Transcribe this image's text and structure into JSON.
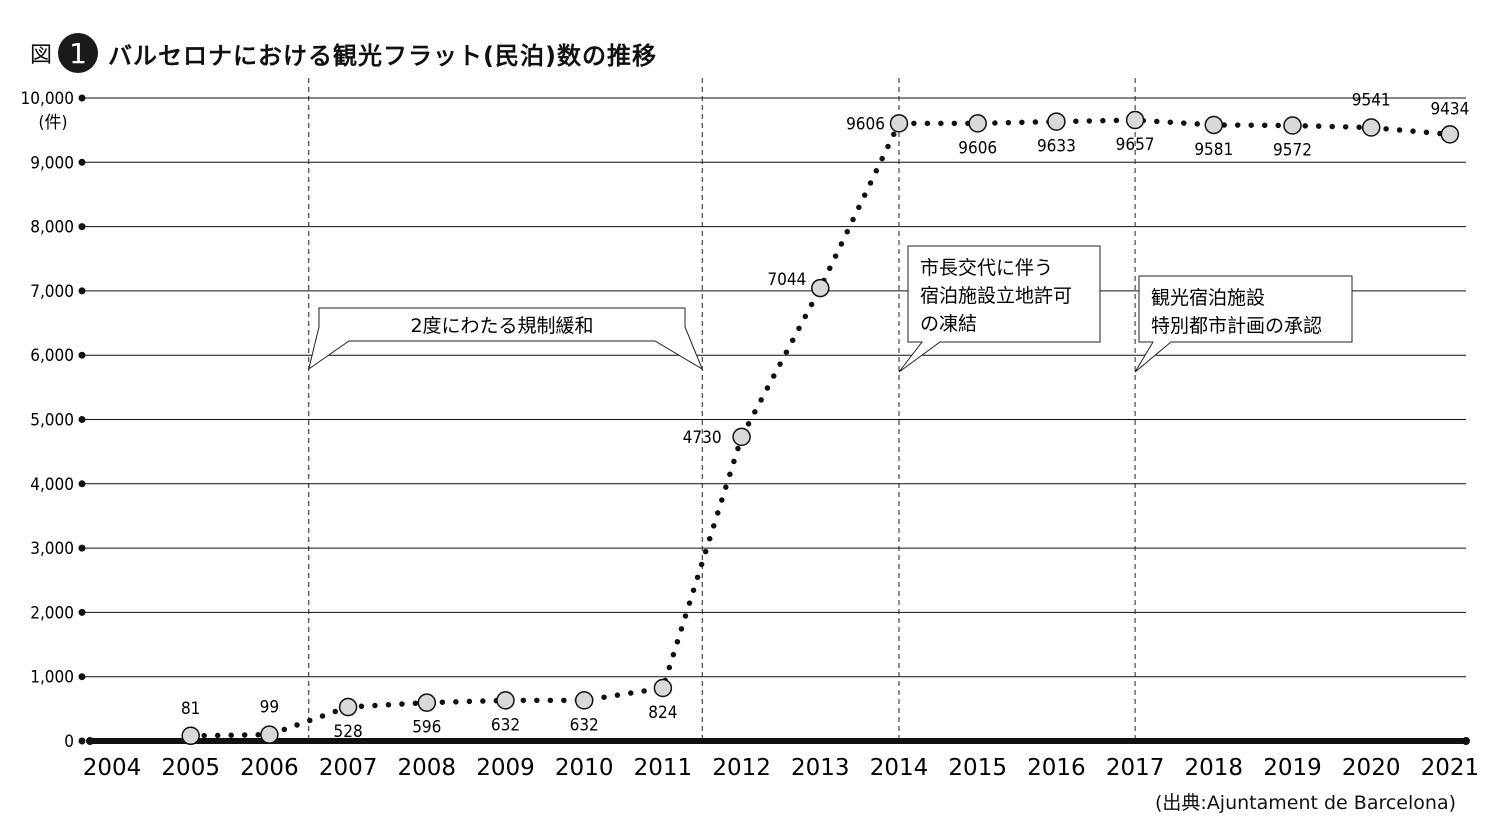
{
  "header": {
    "figure_label": "図",
    "figure_number": "1",
    "title": "バルセロナにおける観光フラット(民泊)数の推移"
  },
  "chart_data": {
    "type": "line",
    "x": [
      2005,
      2006,
      2007,
      2008,
      2009,
      2010,
      2011,
      2012,
      2013,
      2014,
      2015,
      2016,
      2017,
      2018,
      2019,
      2020,
      2021
    ],
    "values": [
      81,
      99,
      528,
      596,
      632,
      632,
      824,
      4730,
      7044,
      9606,
      9606,
      9633,
      9657,
      9581,
      9572,
      9541,
      9434
    ],
    "data_labels": [
      "81",
      "99",
      "528",
      "596",
      "632",
      "632",
      "824",
      "4730",
      "7044",
      "9606",
      "9606",
      "9633",
      "9657",
      "9581",
      "9572",
      "9541",
      "9434"
    ],
    "x_ticks": [
      "2004",
      "2005",
      "2006",
      "2007",
      "2008",
      "2009",
      "2010",
      "2011",
      "2012",
      "2013",
      "2014",
      "2015",
      "2016",
      "2017",
      "2018",
      "2019",
      "2020",
      "2021"
    ],
    "y_ticks": [
      "0",
      "1,000",
      "2,000",
      "3,000",
      "4,000",
      "5,000",
      "6,000",
      "7,000",
      "8,000",
      "9,000",
      "10,000"
    ],
    "ylabel": "(件)",
    "xlim": [
      2004,
      2021
    ],
    "ylim": [
      0,
      10000
    ],
    "grid": true,
    "annotations": [
      {
        "text": [
          "2度にわたる規制緩和"
        ],
        "span": [
          2006.5,
          2011.5
        ]
      },
      {
        "text": [
          "市長交代に伴う",
          "宿泊施設立地許可",
          "の凍結"
        ],
        "at": 2014
      },
      {
        "text": [
          "観光宿泊施設",
          "特別都市計画の承認"
        ],
        "at": 2017
      }
    ],
    "source": "(出典:Ajuntament de Barcelona)"
  }
}
